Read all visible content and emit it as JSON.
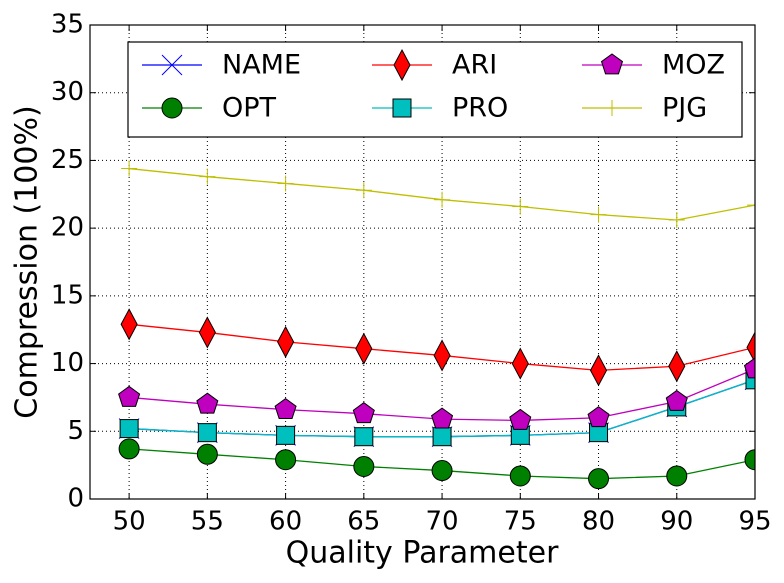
{
  "chart_data": {
    "type": "line",
    "x_label": "Quality Parameter",
    "y_label": "Compression (100%)",
    "categories": [
      "50",
      "55",
      "60",
      "65",
      "70",
      "75",
      "80",
      "90",
      "95"
    ],
    "ylim": [
      0,
      35
    ],
    "yticks": [
      0,
      5,
      10,
      15,
      20,
      25,
      30,
      35
    ],
    "grid": true,
    "legend": "top",
    "series": [
      {
        "name": "NAME",
        "color": "#0000ff",
        "marker": "x",
        "values": [
          5.2,
          4.9,
          4.7,
          4.6,
          4.6,
          4.7,
          4.9,
          6.8,
          8.8
        ]
      },
      {
        "name": "OPT",
        "color": "#008000",
        "marker": "circle",
        "values": [
          3.7,
          3.3,
          2.9,
          2.4,
          2.1,
          1.7,
          1.5,
          1.7,
          2.9
        ]
      },
      {
        "name": "ARI",
        "color": "#ff0000",
        "marker": "diamond",
        "values": [
          12.9,
          12.3,
          11.6,
          11.1,
          10.6,
          10.0,
          9.5,
          9.8,
          11.2
        ]
      },
      {
        "name": "PRO",
        "color": "#00bfbf",
        "marker": "square",
        "values": [
          5.2,
          4.9,
          4.7,
          4.6,
          4.6,
          4.7,
          4.9,
          6.8,
          8.8
        ]
      },
      {
        "name": "MOZ",
        "color": "#bf00bf",
        "marker": "pentagon",
        "values": [
          7.5,
          7.0,
          6.6,
          6.3,
          5.9,
          5.8,
          6.0,
          7.2,
          9.6
        ]
      },
      {
        "name": "PJG",
        "color": "#bfbf00",
        "marker": "plus",
        "values": [
          24.4,
          23.8,
          23.3,
          22.8,
          22.1,
          21.6,
          21.0,
          20.6,
          21.7
        ]
      }
    ]
  }
}
